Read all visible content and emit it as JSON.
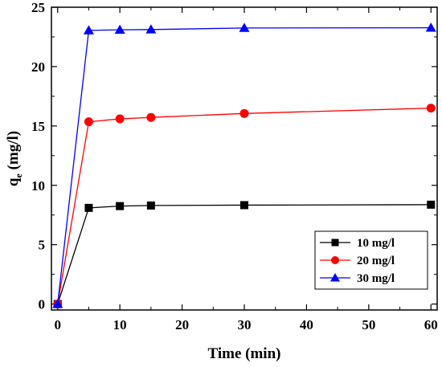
{
  "chart_data": {
    "type": "line",
    "title": "",
    "xlabel": "Time (min)",
    "ylabel_main": "q",
    "ylabel_sub": "e",
    "ylabel_rest": " (mg/l)",
    "xlim": [
      -1,
      61
    ],
    "ylim": [
      -0.5,
      25
    ],
    "xticks": [
      "0",
      "10",
      "20",
      "30",
      "40",
      "50",
      "60"
    ],
    "xtick_values": [
      0,
      10,
      20,
      30,
      40,
      50,
      60
    ],
    "yticks": [
      "0",
      "5",
      "10",
      "15",
      "20",
      "25"
    ],
    "ytick_values": [
      0,
      5,
      10,
      15,
      20,
      25
    ],
    "grid": false,
    "legend_position": "lower-right",
    "series": [
      {
        "name": "10 mg/l",
        "color": "#000000",
        "marker": "square",
        "x": [
          0,
          5,
          10,
          15,
          30,
          60
        ],
        "y": [
          0,
          8.1,
          8.25,
          8.3,
          8.33,
          8.37
        ]
      },
      {
        "name": "20 mg/l",
        "color": "#ff0000",
        "marker": "circle",
        "x": [
          0,
          5,
          10,
          15,
          30,
          60
        ],
        "y": [
          0,
          15.35,
          15.6,
          15.72,
          16.05,
          16.5
        ]
      },
      {
        "name": "30 mg/l",
        "color": "#0000ff",
        "marker": "triangle",
        "x": [
          0,
          5,
          10,
          15,
          30,
          60
        ],
        "y": [
          0,
          23.05,
          23.1,
          23.12,
          23.25,
          23.27
        ]
      }
    ]
  }
}
